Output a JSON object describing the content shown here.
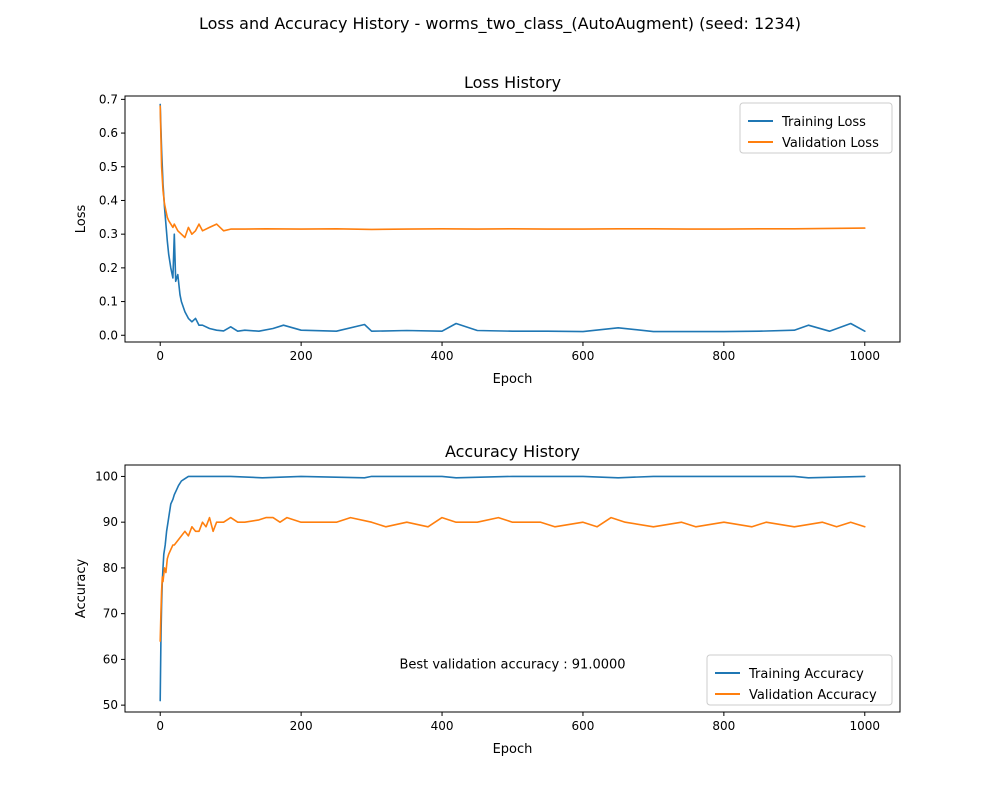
{
  "figure": {
    "suptitle": "Loss and Accuracy History - worms_two_class_(AutoAugment) (seed: 1234)"
  },
  "chart_data": [
    {
      "type": "line",
      "title": "Loss History",
      "xlabel": "Epoch",
      "ylabel": "Loss",
      "xlim": [
        -50,
        1050
      ],
      "ylim": [
        -0.02,
        0.71
      ],
      "xticks": [
        0,
        200,
        400,
        600,
        800,
        1000
      ],
      "yticks": [
        0.0,
        0.1,
        0.2,
        0.3,
        0.4,
        0.5,
        0.6,
        0.7
      ],
      "ytick_labels": [
        "0.0",
        "0.1",
        "0.2",
        "0.3",
        "0.4",
        "0.5",
        "0.6",
        "0.7"
      ],
      "grid": false,
      "legend_position": "top-right",
      "series": [
        {
          "name": "Training Loss",
          "color": "#1f77b4",
          "x": [
            0,
            2,
            4,
            6,
            8,
            10,
            12,
            15,
            18,
            20,
            22,
            25,
            28,
            30,
            35,
            40,
            45,
            50,
            55,
            60,
            70,
            80,
            90,
            100,
            110,
            120,
            140,
            160,
            175,
            200,
            250,
            290,
            300,
            350,
            400,
            420,
            450,
            500,
            550,
            600,
            650,
            700,
            750,
            800,
            850,
            900,
            920,
            950,
            980,
            1000
          ],
          "y": [
            0.685,
            0.55,
            0.45,
            0.38,
            0.33,
            0.28,
            0.24,
            0.2,
            0.17,
            0.3,
            0.16,
            0.18,
            0.12,
            0.1,
            0.07,
            0.05,
            0.04,
            0.05,
            0.03,
            0.03,
            0.02,
            0.015,
            0.013,
            0.025,
            0.012,
            0.015,
            0.012,
            0.02,
            0.03,
            0.015,
            0.012,
            0.032,
            0.012,
            0.014,
            0.012,
            0.035,
            0.014,
            0.012,
            0.012,
            0.011,
            0.022,
            0.011,
            0.011,
            0.011,
            0.012,
            0.015,
            0.03,
            0.012,
            0.035,
            0.012
          ]
        },
        {
          "name": "Validation Loss",
          "color": "#ff7f0e",
          "x": [
            0,
            2,
            4,
            6,
            8,
            10,
            12,
            15,
            18,
            20,
            25,
            30,
            35,
            40,
            45,
            50,
            55,
            60,
            70,
            80,
            90,
            100,
            120,
            150,
            200,
            250,
            300,
            350,
            400,
            450,
            500,
            550,
            600,
            650,
            700,
            750,
            800,
            850,
            900,
            950,
            1000
          ],
          "y": [
            0.68,
            0.5,
            0.43,
            0.39,
            0.37,
            0.35,
            0.34,
            0.33,
            0.32,
            0.33,
            0.31,
            0.3,
            0.29,
            0.32,
            0.3,
            0.31,
            0.33,
            0.31,
            0.32,
            0.33,
            0.31,
            0.315,
            0.315,
            0.316,
            0.315,
            0.316,
            0.314,
            0.315,
            0.316,
            0.315,
            0.316,
            0.315,
            0.315,
            0.316,
            0.316,
            0.315,
            0.315,
            0.316,
            0.316,
            0.317,
            0.318
          ]
        }
      ]
    },
    {
      "type": "line",
      "title": "Accuracy History",
      "xlabel": "Epoch",
      "ylabel": "Accuracy",
      "xlim": [
        -50,
        1050
      ],
      "ylim": [
        48.5,
        102.5
      ],
      "xticks": [
        0,
        200,
        400,
        600,
        800,
        1000
      ],
      "yticks": [
        50,
        60,
        70,
        80,
        90,
        100
      ],
      "ytick_labels": [
        "50",
        "60",
        "70",
        "80",
        "90",
        "100"
      ],
      "grid": false,
      "legend_position": "bottom-right",
      "annotation": "Best validation accuracy : 91.0000",
      "annotation_xy": [
        500,
        58.9
      ],
      "series": [
        {
          "name": "Training Accuracy",
          "color": "#1f77b4",
          "x": [
            0,
            1,
            2,
            3,
            4,
            5,
            7,
            9,
            11,
            13,
            15,
            18,
            20,
            23,
            26,
            30,
            35,
            40,
            50,
            60,
            100,
            145,
            200,
            290,
            300,
            400,
            420,
            500,
            600,
            650,
            700,
            800,
            900,
            920,
            1000
          ],
          "y": [
            51,
            64,
            72,
            77,
            80,
            83,
            85,
            88,
            90,
            92,
            94,
            95,
            96,
            97,
            98,
            99,
            99.5,
            100,
            100,
            100,
            100,
            99.7,
            100,
            99.7,
            100,
            100,
            99.7,
            100,
            100,
            99.7,
            100,
            100,
            100,
            99.7,
            100
          ]
        },
        {
          "name": "Validation Accuracy",
          "color": "#ff7f0e",
          "x": [
            0,
            1,
            2,
            3,
            4,
            6,
            8,
            10,
            12,
            15,
            18,
            20,
            25,
            30,
            35,
            40,
            45,
            50,
            55,
            60,
            65,
            70,
            75,
            80,
            90,
            100,
            110,
            120,
            140,
            150,
            160,
            170,
            180,
            200,
            220,
            250,
            270,
            300,
            320,
            350,
            380,
            400,
            420,
            450,
            480,
            500,
            540,
            560,
            600,
            620,
            640,
            660,
            700,
            740,
            760,
            800,
            840,
            860,
            900,
            940,
            960,
            980,
            1000
          ],
          "y": [
            64,
            70,
            75,
            78,
            77,
            80,
            79,
            82,
            83,
            84,
            85,
            85,
            86,
            87,
            88,
            87,
            89,
            88,
            88,
            90,
            89,
            91,
            88,
            90,
            90,
            91,
            90,
            90,
            90.5,
            91,
            91,
            90,
            91,
            90,
            90,
            90,
            91,
            90,
            89,
            90,
            89,
            91,
            90,
            90,
            91,
            90,
            90,
            89,
            90,
            89,
            91,
            90,
            89,
            90,
            89,
            90,
            89,
            90,
            89,
            90,
            89,
            90,
            89
          ]
        }
      ]
    }
  ]
}
